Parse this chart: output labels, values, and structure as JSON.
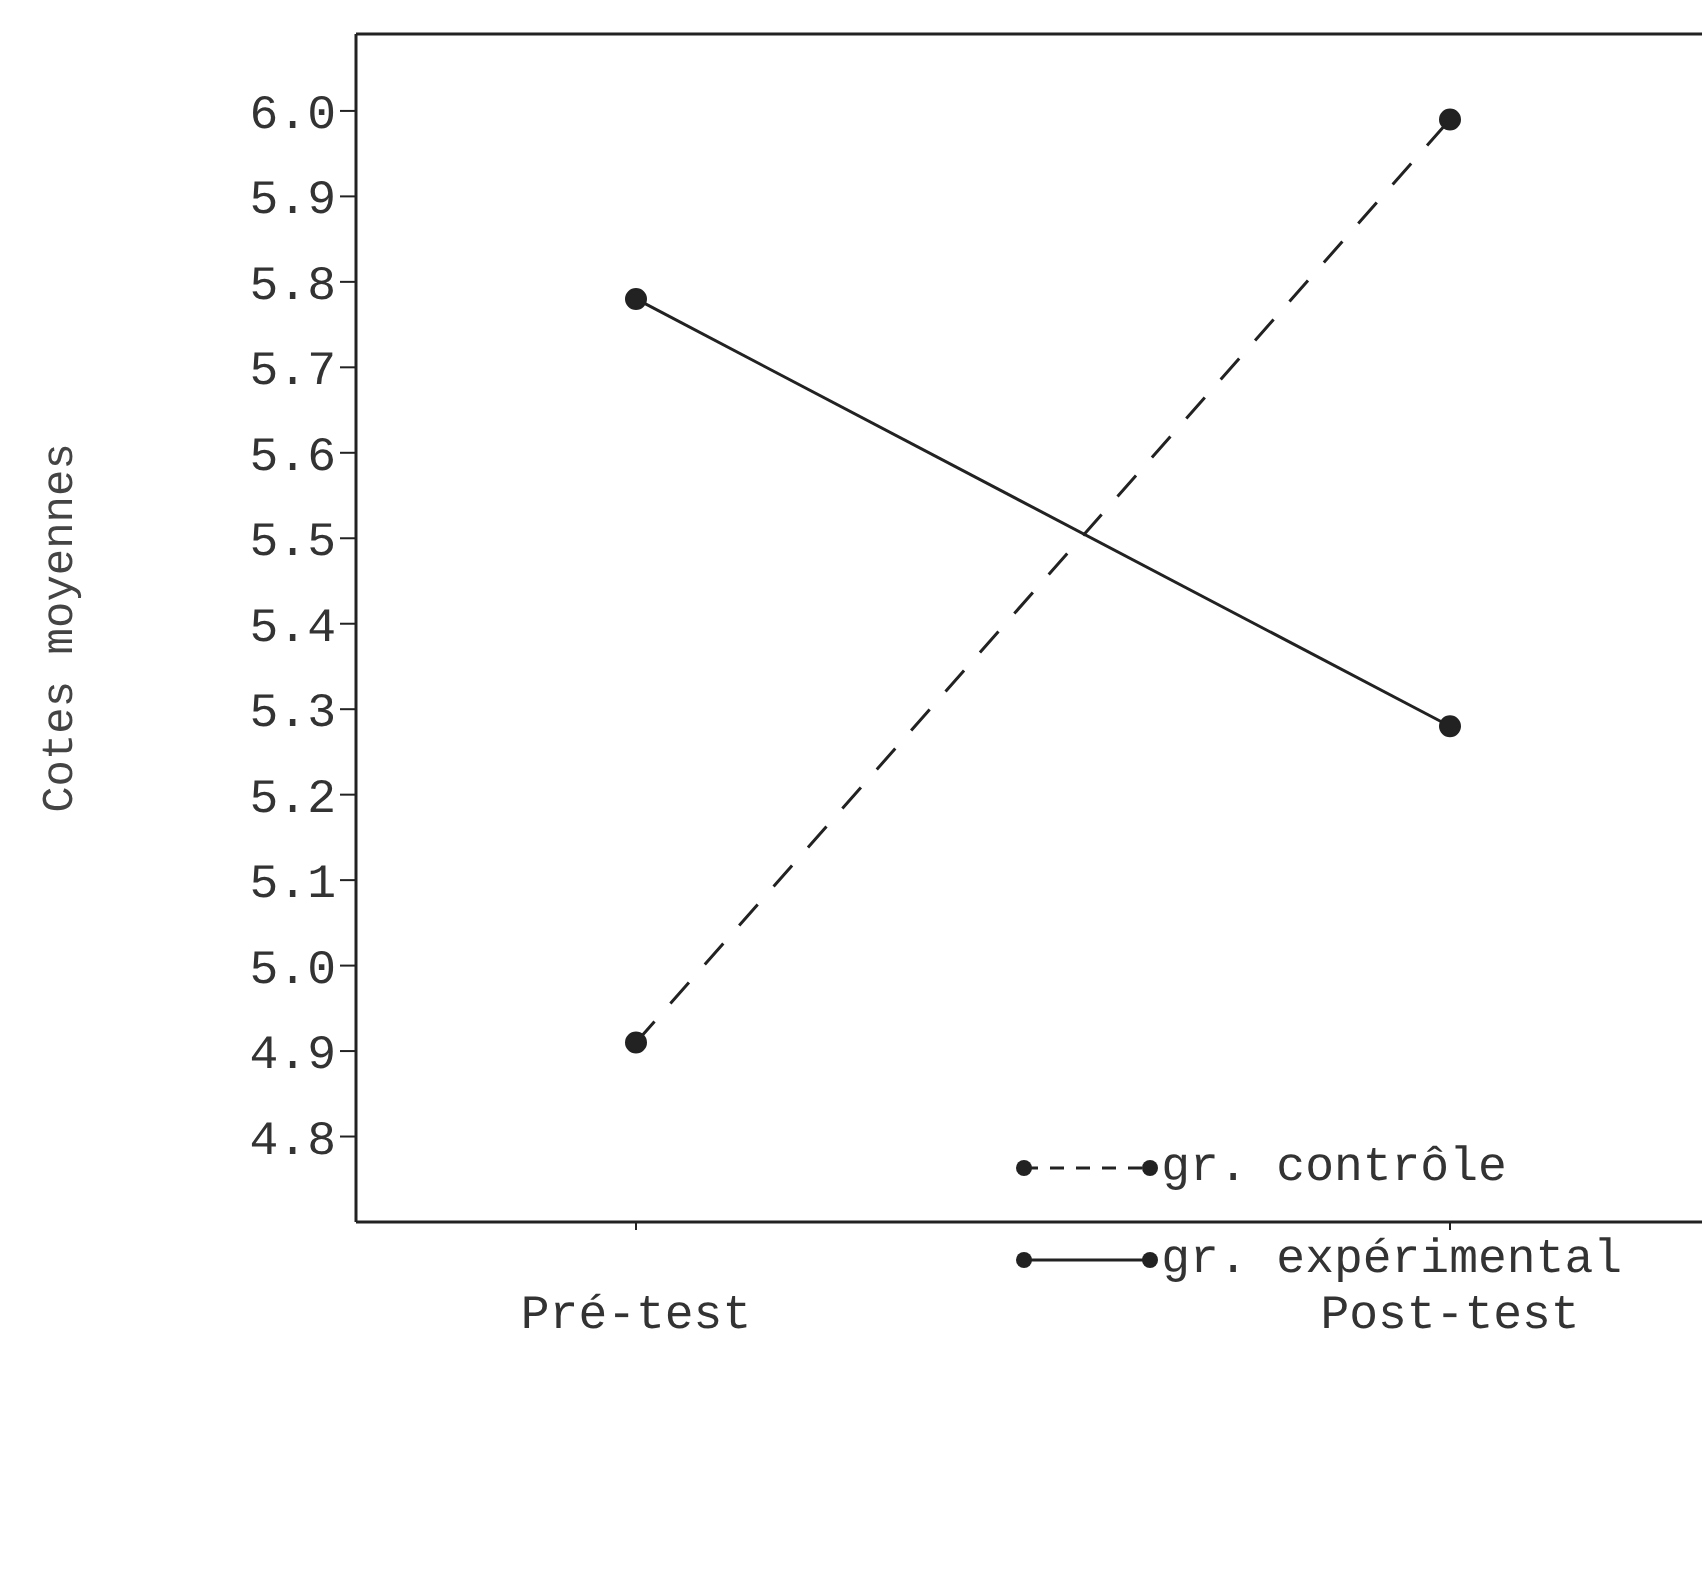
{
  "chart_data": {
    "type": "line",
    "ylabel": "Cotes moyennes",
    "categories": [
      "Pré-test",
      "Post-test"
    ],
    "series": [
      {
        "name": "gr. contrôle",
        "color": "#222222",
        "line_style": "dashed",
        "values": [
          4.91,
          5.99
        ]
      },
      {
        "name": "gr. expérimental",
        "color": "#222222",
        "line_style": "solid",
        "values": [
          5.78,
          5.28
        ]
      }
    ],
    "ylim": [
      4.7,
      6.09
    ],
    "yticks": [
      {
        "value": 4.8,
        "label": "4.8"
      },
      {
        "value": 4.9,
        "label": "4.9"
      },
      {
        "value": 5.0,
        "label": "5.0"
      },
      {
        "value": 5.1,
        "label": "5.1"
      },
      {
        "value": 5.2,
        "label": "5.2"
      },
      {
        "value": 5.3,
        "label": "5.3"
      },
      {
        "value": 5.4,
        "label": "5.4"
      },
      {
        "value": 5.5,
        "label": "5.5"
      },
      {
        "value": 5.6,
        "label": "5.6"
      },
      {
        "value": 5.7,
        "label": "5.7"
      },
      {
        "value": 5.8,
        "label": "5.8"
      },
      {
        "value": 5.9,
        "label": "5.9"
      },
      {
        "value": 6.0,
        "label": "6.0"
      }
    ],
    "marker": "circle",
    "legend": "bottom right",
    "grid": false
  }
}
